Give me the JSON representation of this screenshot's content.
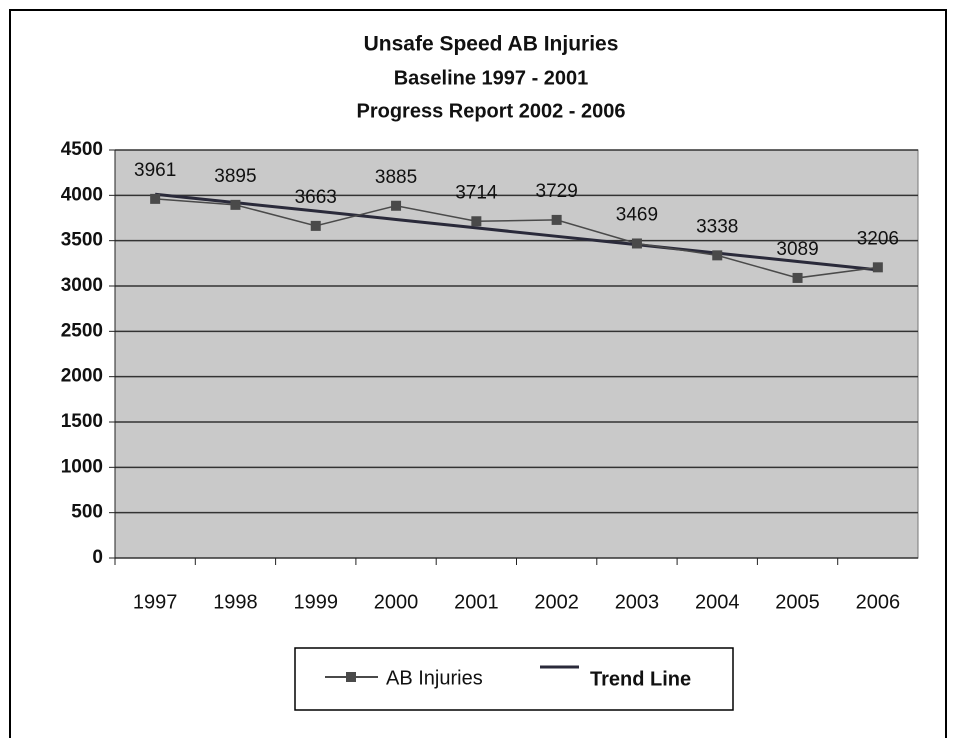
{
  "chart_data": {
    "type": "line",
    "title": [
      "Unsafe Speed AB Injuries",
      "Baseline 1997 - 2001",
      "Progress Report 2002 - 2006"
    ],
    "categories": [
      "1997",
      "1998",
      "1999",
      "2000",
      "2001",
      "2002",
      "2003",
      "2004",
      "2005",
      "2006"
    ],
    "series": [
      {
        "name": "AB Injuries",
        "color": "#4a4a4a",
        "values": [
          3961,
          3895,
          3663,
          3885,
          3714,
          3729,
          3469,
          3338,
          3089,
          3206
        ]
      },
      {
        "name": "Trend Line",
        "color": "#2a2a3a",
        "values": [
          4012,
          3919,
          3827,
          3734,
          3641,
          3548,
          3456,
          3363,
          3270,
          3178
        ]
      }
    ],
    "ylim": [
      0,
      4500
    ],
    "yticks": [
      0,
      500,
      1000,
      1500,
      2000,
      2500,
      3000,
      3500,
      4000,
      4500
    ],
    "grid": true,
    "legend": "bottom"
  }
}
